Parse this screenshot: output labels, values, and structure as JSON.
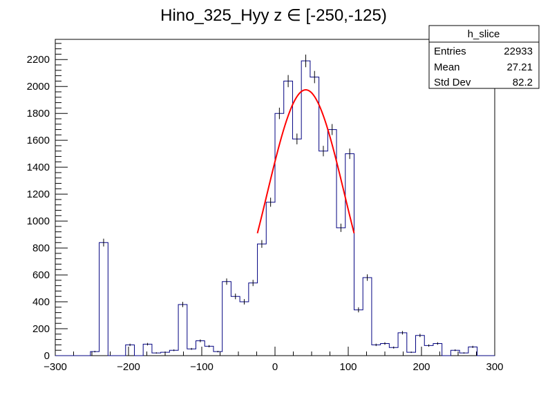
{
  "chart_data": {
    "type": "bar",
    "title": "Hino_325_Hyy z  ∈ [-250,-125)",
    "xlabel": "",
    "ylabel": "",
    "xlim": [
      -300,
      300
    ],
    "ylim": [
      0,
      2350
    ],
    "x_ticks": [
      -300,
      -200,
      -100,
      0,
      100,
      200,
      300
    ],
    "y_ticks": [
      0,
      200,
      400,
      600,
      800,
      1000,
      1200,
      1400,
      1600,
      1800,
      2000,
      2200
    ],
    "bin_width": 12,
    "bin_edges_start": -300,
    "counts": [
      0,
      0,
      0,
      0,
      30,
      840,
      0,
      0,
      80,
      0,
      85,
      20,
      25,
      40,
      380,
      50,
      110,
      70,
      30,
      550,
      440,
      400,
      540,
      830,
      1140,
      1800,
      2040,
      1610,
      2190,
      2070,
      1520,
      1680,
      950,
      1500,
      340,
      580,
      80,
      90,
      60,
      170,
      25,
      150,
      75,
      90,
      0,
      40,
      20,
      65,
      0,
      0
    ],
    "line_color": "#000080",
    "fit": {
      "type": "gaussian",
      "color": "#ff0000",
      "amplitude": 1975,
      "mean": 42,
      "sigma": 53,
      "x_range": [
        -24,
        108
      ]
    },
    "stats_box": {
      "title": "h_slice",
      "rows": [
        {
          "label": "Entries",
          "value": "22933"
        },
        {
          "label": "Mean",
          "value": "27.21"
        },
        {
          "label": "Std Dev",
          "value": "82.2"
        }
      ]
    },
    "grid": false
  }
}
